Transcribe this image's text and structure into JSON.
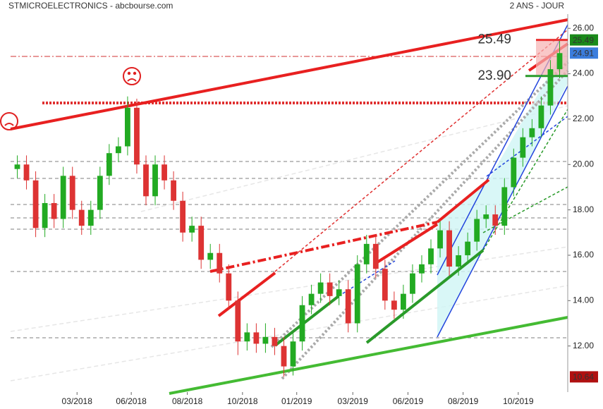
{
  "chart_data": {
    "type": "candlestick",
    "title": "STMICROELECTRONICS - abcbourse.com",
    "subtitle": "2 ANS - JOUR",
    "open": [
      19.8,
      20.0,
      19.3,
      17.2,
      18.3,
      17.6,
      19.5,
      18.0,
      17.3,
      18.0,
      19.5,
      20.5,
      20.8,
      22.5,
      20.0,
      18.6,
      20.0,
      19.3,
      18.4,
      17.0,
      17.3,
      15.8,
      16.1,
      15.2,
      14.0,
      12.2,
      12.6,
      12.1,
      12.4,
      12.0,
      11.1,
      12.2,
      13.8,
      14.3,
      14.8,
      14.2,
      14.5,
      13.0,
      15.6,
      16.5,
      15.4,
      14.0,
      13.6,
      14.3,
      15.2,
      15.6,
      16.3,
      17.1,
      15.5,
      16.0,
      16.6,
      17.6,
      17.8,
      17.3,
      19.0,
      20.3,
      21.2,
      21.6,
      22.6,
      24.2
    ],
    "high": [
      20.4,
      20.4,
      19.7,
      18.7,
      18.7,
      19.9,
      19.9,
      18.4,
      18.4,
      19.9,
      20.9,
      21.2,
      23.0,
      22.9,
      20.4,
      20.4,
      20.4,
      19.7,
      18.8,
      17.7,
      17.7,
      16.5,
      16.5,
      15.6,
      14.4,
      13.0,
      13.0,
      13.0,
      12.8,
      12.4,
      12.6,
      14.2,
      14.7,
      15.2,
      15.2,
      14.9,
      14.9,
      16.0,
      16.9,
      16.9,
      15.8,
      14.4,
      14.7,
      15.6,
      16.0,
      16.7,
      17.5,
      17.5,
      16.4,
      17.0,
      18.0,
      18.2,
      18.2,
      19.4,
      20.7,
      21.6,
      22.0,
      23.0,
      24.6,
      25.49
    ],
    "low": [
      19.4,
      18.9,
      16.8,
      16.8,
      17.2,
      17.2,
      17.6,
      16.9,
      16.9,
      17.6,
      19.1,
      20.1,
      20.4,
      19.6,
      18.2,
      18.2,
      18.9,
      18.0,
      16.6,
      16.6,
      15.4,
      15.4,
      14.8,
      13.6,
      11.6,
      11.8,
      11.7,
      11.7,
      11.6,
      10.64,
      10.7,
      11.8,
      13.4,
      13.9,
      13.8,
      13.8,
      12.6,
      12.6,
      15.2,
      15.0,
      13.6,
      13.2,
      13.2,
      13.9,
      14.8,
      15.2,
      15.9,
      15.1,
      15.1,
      15.6,
      16.2,
      17.2,
      16.9,
      16.9,
      18.6,
      19.9,
      20.8,
      21.2,
      22.2,
      23.8
    ],
    "close": [
      20.0,
      19.3,
      17.2,
      18.3,
      17.6,
      19.5,
      18.0,
      17.3,
      18.0,
      19.5,
      20.5,
      20.8,
      22.5,
      20.0,
      18.6,
      20.0,
      19.3,
      18.4,
      17.0,
      17.3,
      15.8,
      16.1,
      15.2,
      14.0,
      12.2,
      12.6,
      12.1,
      12.4,
      12.0,
      11.1,
      12.2,
      13.8,
      14.3,
      14.8,
      14.2,
      14.5,
      13.0,
      15.6,
      16.5,
      15.4,
      14.0,
      13.6,
      14.3,
      15.2,
      15.6,
      16.3,
      17.1,
      15.5,
      16.0,
      16.6,
      17.6,
      17.8,
      17.3,
      19.0,
      20.3,
      21.2,
      21.6,
      22.6,
      24.2,
      24.91
    ],
    "up_color": "#22aa22",
    "down_color": "#dd3333",
    "ylim": [
      10.0,
      27.25
    ],
    "yticks": [
      {
        "value": 12,
        "label": "12.00"
      },
      {
        "value": 14,
        "label": "14.00"
      },
      {
        "value": 16,
        "label": "16.00"
      },
      {
        "value": 18,
        "label": "18.00"
      },
      {
        "value": 20,
        "label": "20.00"
      },
      {
        "value": 22,
        "label": "22.00"
      },
      {
        "value": 24,
        "label": "24.00"
      },
      {
        "value": 26,
        "label": "26.00"
      }
    ],
    "xticks": [
      {
        "value": 6.5,
        "label": "03/2018"
      },
      {
        "value": 12.4,
        "label": "06/2018"
      },
      {
        "value": 18.5,
        "label": "08/2018"
      },
      {
        "value": 24.5,
        "label": "10/2018"
      },
      {
        "value": 30.4,
        "label": "01/2019"
      },
      {
        "value": 36.5,
        "label": "03/2019"
      },
      {
        "value": 42.5,
        "label": "06/2019"
      },
      {
        "value": 48.5,
        "label": "08/2019"
      },
      {
        "value": 54.5,
        "label": "10/2019"
      }
    ],
    "price_tags": [
      {
        "value": 25.49,
        "color": "#1a8a1a"
      },
      {
        "value": 24.91,
        "color": "#3b7ddd"
      },
      {
        "value": 10.64,
        "color": "#b01010"
      }
    ],
    "annotations": [
      {
        "value": 25.49,
        "color": "#e83030"
      },
      {
        "value": 23.9,
        "label": "23.90",
        "color": "#2a9a2a"
      }
    ]
  }
}
